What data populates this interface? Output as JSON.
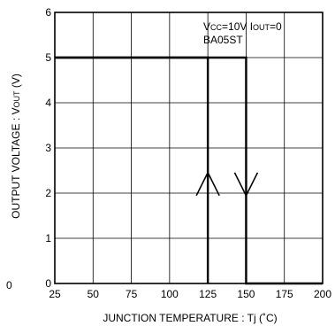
{
  "chart_data": {
    "type": "line",
    "xlabel": "JUNCTION  TEMPERATURE : Tj (˚C)",
    "ylabel_main": "OUTPUT  VOLTAGE : V",
    "ylabel_sub": "OUT",
    "ylabel_unit": " (V)",
    "annotation": {
      "line1_a": "V",
      "line1_a_sub": "CC",
      "line1_b": "=10V I",
      "line1_b_sub": "OUT",
      "line1_c": "=0",
      "line2": "BA05ST"
    },
    "xlim": [
      25,
      200
    ],
    "ylim": [
      0,
      6
    ],
    "x_ticks": [
      25,
      50,
      75,
      100,
      125,
      150,
      175,
      200
    ],
    "y_ticks": [
      0,
      1,
      2,
      3,
      4,
      5,
      6
    ],
    "x_tick_labels": [
      "25",
      "50",
      "75",
      "100",
      "125",
      "150",
      "175",
      "200"
    ],
    "y_tick_labels": [
      "0",
      "1",
      "2",
      "3",
      "4",
      "5",
      "6"
    ],
    "stray_label": "0",
    "grid": true,
    "series": [
      {
        "x": [
          25,
          125,
          125
        ],
        "y": [
          5,
          5,
          0
        ]
      },
      {
        "x": [
          25,
          150,
          150,
          200
        ],
        "y": [
          5,
          5,
          0,
          0
        ]
      }
    ],
    "arrows": [
      {
        "x": 125,
        "y": 2.2,
        "direction": "up"
      },
      {
        "x": 150,
        "y": 2.2,
        "direction": "down"
      }
    ]
  }
}
